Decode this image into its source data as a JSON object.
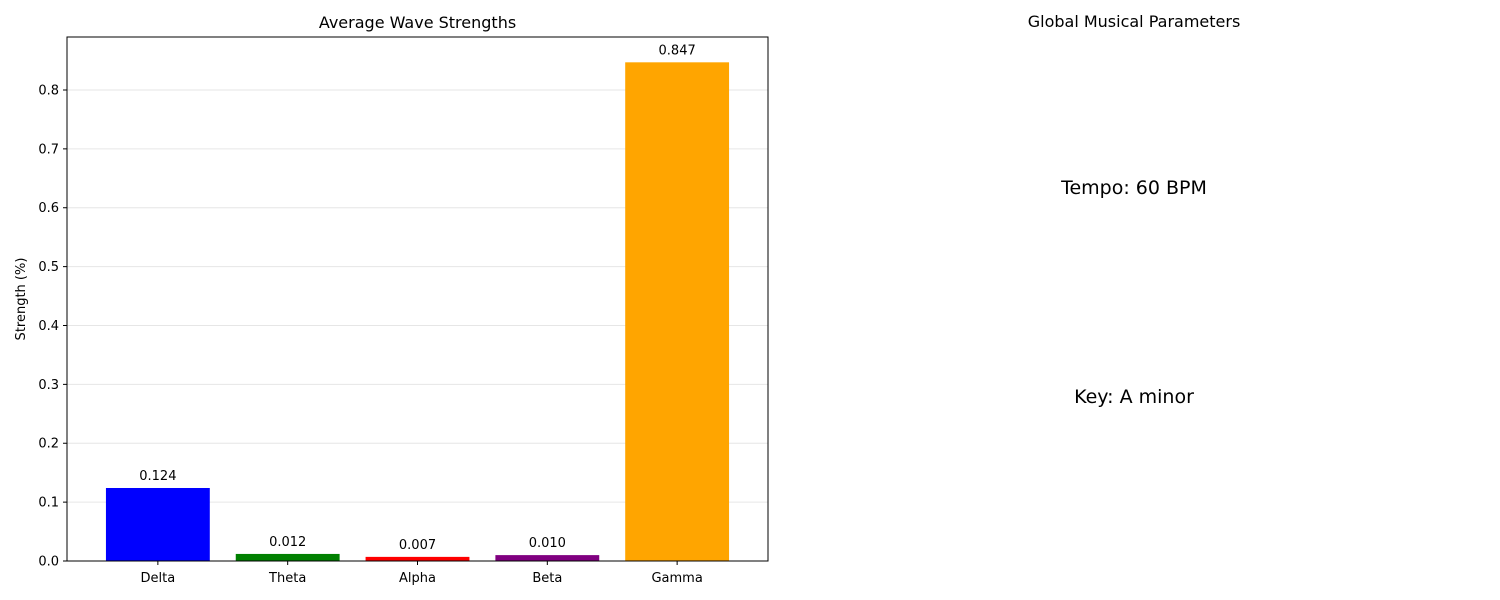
{
  "chart_data": {
    "type": "bar",
    "title": "Average Wave Strengths",
    "xlabel": "",
    "ylabel": "Strength (%)",
    "categories": [
      "Delta",
      "Theta",
      "Alpha",
      "Beta",
      "Gamma"
    ],
    "values": [
      0.124,
      0.012,
      0.007,
      0.01,
      0.847
    ],
    "value_labels": [
      "0.124",
      "0.012",
      "0.007",
      "0.010",
      "0.847"
    ],
    "colors": [
      "#0000ff",
      "#008000",
      "#ff0000",
      "#800080",
      "#ffa500"
    ],
    "ylim": [
      0,
      0.89
    ],
    "yticks": [
      0.0,
      0.1,
      0.2,
      0.3,
      0.4,
      0.5,
      0.6,
      0.7,
      0.8
    ],
    "ytick_labels": [
      "0.0",
      "0.1",
      "0.2",
      "0.3",
      "0.4",
      "0.5",
      "0.6",
      "0.7",
      "0.8"
    ],
    "grid": "y",
    "legend": "none"
  },
  "params_panel": {
    "title": "Global Musical Parameters",
    "tempo": "Tempo: 60 BPM",
    "key": "Key: A minor"
  }
}
